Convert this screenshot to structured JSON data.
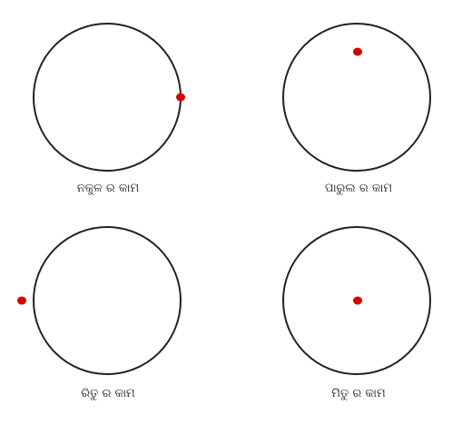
{
  "colors": {
    "circle_stroke": "#222222",
    "dot_fill": "#d40000",
    "caption_text": "#222222",
    "background": "#ffffff"
  },
  "panels": [
    {
      "caption": "ନକୁଳ ର କାମ",
      "dot_position": "on the circle, right edge"
    },
    {
      "caption": "ପାରୁଲ ର କାମ",
      "dot_position": "inside the circle, near the top"
    },
    {
      "caption": "ରିତୁ ର କାମ",
      "dot_position": "outside the circle, left side"
    },
    {
      "caption": "ମିତୁ ର କାମ",
      "dot_position": "at the centre of the circle"
    }
  ]
}
